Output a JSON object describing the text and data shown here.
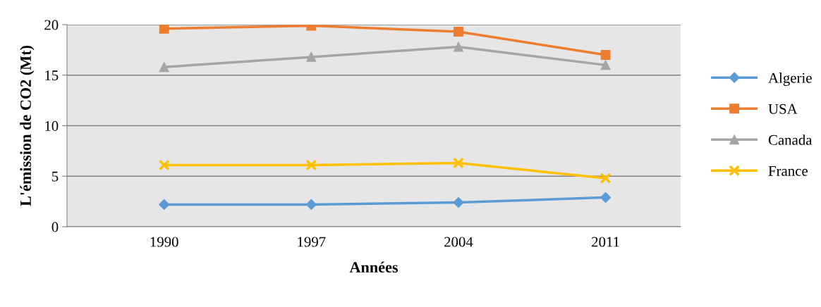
{
  "chart_data": {
    "type": "line",
    "xlabel": "Années",
    "ylabel": "L'émission de CO2 (Mt)",
    "categories": [
      "1990",
      "1997",
      "2004",
      "2011"
    ],
    "series": [
      {
        "name": "Algerie",
        "color": "#5b9bd5",
        "marker": "diamond",
        "values": [
          2.2,
          2.2,
          2.4,
          2.9
        ]
      },
      {
        "name": "USA",
        "color": "#ed7d31",
        "marker": "square",
        "values": [
          19.6,
          19.9,
          19.3,
          17.0
        ]
      },
      {
        "name": "Canada",
        "color": "#a5a5a5",
        "marker": "triangle",
        "values": [
          15.8,
          16.8,
          17.8,
          16.0
        ]
      },
      {
        "name": "France",
        "color": "#ffc000",
        "marker": "cross",
        "values": [
          6.1,
          6.1,
          6.3,
          4.8
        ]
      }
    ],
    "ylim": [
      0,
      20
    ],
    "yticks": [
      0,
      5,
      10,
      15,
      20
    ],
    "grid": "y",
    "legend": "right"
  }
}
